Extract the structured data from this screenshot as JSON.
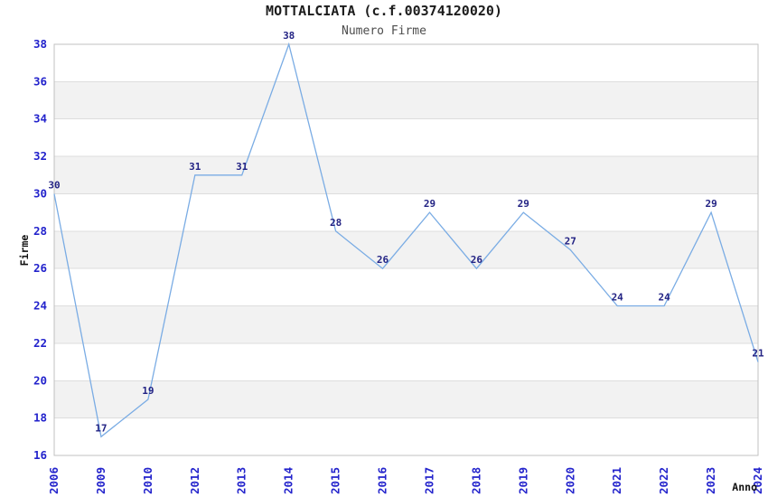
{
  "header": {
    "title": "MOTTALCIATA (c.f.00374120020)",
    "subtitle": "Numero Firme"
  },
  "chart_data": {
    "type": "line",
    "title": "MOTTALCIATA (c.f.00374120020)",
    "subtitle": "Numero Firme",
    "categories": [
      "2006",
      "2009",
      "2010",
      "2012",
      "2013",
      "2014",
      "2015",
      "2016",
      "2017",
      "2018",
      "2019",
      "2020",
      "2021",
      "2022",
      "2023",
      "2024"
    ],
    "values": [
      30,
      17,
      19,
      31,
      31,
      38,
      28,
      26,
      29,
      26,
      29,
      27,
      24,
      24,
      29,
      21
    ],
    "xlabel": "Anno",
    "ylabel": "Firme",
    "ylim": [
      16,
      38
    ],
    "ytick_step": 2,
    "grid": "horizontal-with-alternating-bands",
    "legend": "none",
    "data_labels": true
  },
  "colors": {
    "line": "#7aace4",
    "tick_label": "#2323cc",
    "data_label": "#232384",
    "band": "#f2f2f2",
    "gridline": "#dddddd",
    "plot_border": "#c0c0c0",
    "title": "#1c1c1c",
    "subtitle": "#4d4d4d",
    "axis_title": "#111111",
    "background": "#ffffff"
  }
}
